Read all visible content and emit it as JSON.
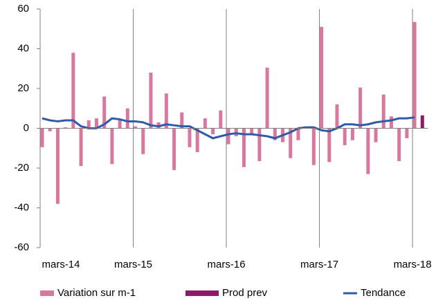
{
  "chart_data": {
    "type": "bar",
    "categories": [
      "mars-14",
      null,
      null,
      null,
      null,
      null,
      null,
      null,
      null,
      null,
      null,
      null,
      "mars-15",
      null,
      null,
      null,
      null,
      null,
      null,
      null,
      null,
      null,
      null,
      null,
      "mars-16",
      null,
      null,
      null,
      null,
      null,
      null,
      null,
      null,
      null,
      null,
      null,
      "mars-17",
      null,
      null,
      null,
      null,
      null,
      null,
      null,
      null,
      null,
      null,
      null,
      "mars-18",
      null
    ],
    "series": [
      {
        "name": "Variation sur m-1",
        "color": "#d9789f",
        "kind": "bar",
        "values": [
          -9.5,
          -1.5,
          -38,
          0.5,
          38,
          -19,
          4,
          5,
          16,
          -18,
          4,
          10,
          1,
          -13,
          28,
          3,
          17.5,
          -21,
          8,
          -9.5,
          -12,
          5,
          -3,
          9,
          -8,
          -4,
          -19.5,
          -3,
          -16.5,
          30.5,
          -6,
          -7,
          -15,
          -6,
          0,
          -18.5,
          51,
          -17,
          12,
          -8.5,
          -6,
          20.5,
          -23,
          -7,
          17,
          6,
          -16.5,
          -5,
          53.5,
          null
        ]
      },
      {
        "name": "Prod prev",
        "color": "#8b1a6b",
        "kind": "bar",
        "values": [
          null,
          null,
          null,
          null,
          null,
          null,
          null,
          null,
          null,
          null,
          null,
          null,
          null,
          null,
          null,
          null,
          null,
          null,
          null,
          null,
          null,
          null,
          null,
          null,
          null,
          null,
          null,
          null,
          null,
          null,
          null,
          null,
          null,
          null,
          null,
          null,
          null,
          null,
          null,
          null,
          null,
          null,
          null,
          null,
          null,
          null,
          null,
          null,
          null,
          6.5
        ]
      },
      {
        "name": "Tendance",
        "color": "#2e5aa8",
        "kind": "line",
        "values": [
          5,
          4,
          3.5,
          4,
          4,
          1,
          0,
          0,
          2,
          5,
          4.5,
          3.5,
          3.5,
          3,
          1.5,
          1,
          2,
          1.5,
          1,
          1,
          -1,
          -3,
          -5,
          -4,
          -3,
          -2.5,
          -3,
          -3,
          -3.5,
          -4,
          -5,
          -3.5,
          -2,
          0,
          0.5,
          0.5,
          -1,
          -1.5,
          0,
          2,
          2,
          1.5,
          2,
          3,
          3.5,
          4,
          5,
          5,
          5.5,
          null
        ]
      }
    ],
    "ylim": [
      -60,
      60
    ],
    "yticks": [
      -60,
      -40,
      -20,
      0,
      20,
      40,
      60
    ],
    "grid": true,
    "legend": "bottom"
  }
}
